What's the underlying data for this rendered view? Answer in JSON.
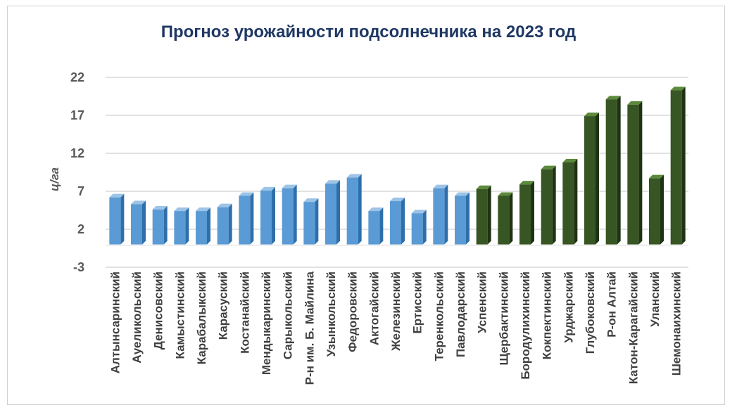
{
  "chart_data": {
    "type": "bar",
    "title": "Прогноз урожайности подсолнечника на 2023 год",
    "xlabel": "",
    "ylabel": "ц/га",
    "ylim": [
      -3,
      22
    ],
    "yticks": [
      -3,
      2,
      7,
      12,
      17,
      22
    ],
    "grid": true,
    "categories": [
      "Алтынсаринский",
      "Ауеликольский",
      "Денисовский",
      "Камыстинский",
      "Карабалыкский",
      "Карасуский",
      "Костанайский",
      "Мендыкаринский",
      "Сарыкольский",
      "Р-н им. Б. Майлина",
      "Узынкольский",
      "Федоровский",
      "Актогайский",
      "Железинский",
      "Ертисский",
      "Теренкольский",
      "Павлодарский",
      "Успенский",
      "Щербактинский",
      "Бородулихинский",
      "Кокпектинский",
      "Урджарский",
      "Глубоковский",
      "Р-он Алтай",
      "Катон-Карагайский",
      "Уланский",
      "Шемонаихинский"
    ],
    "values": [
      6.2,
      5.3,
      4.6,
      4.4,
      4.4,
      4.9,
      6.4,
      7.1,
      7.4,
      5.6,
      8.0,
      8.8,
      4.4,
      5.7,
      4.1,
      7.4,
      6.4,
      7.3,
      6.4,
      7.9,
      9.9,
      10.8,
      16.9,
      19.1,
      18.4,
      8.7,
      20.3
    ],
    "colors": {
      "blue_front": "#5b9bd5",
      "blue_top": "#9dc3e6",
      "blue_side": "#2e6fab",
      "green_front": "#375623",
      "green_top": "#5c8a3c",
      "green_side": "#1e3314"
    },
    "green_from_index": 17
  }
}
